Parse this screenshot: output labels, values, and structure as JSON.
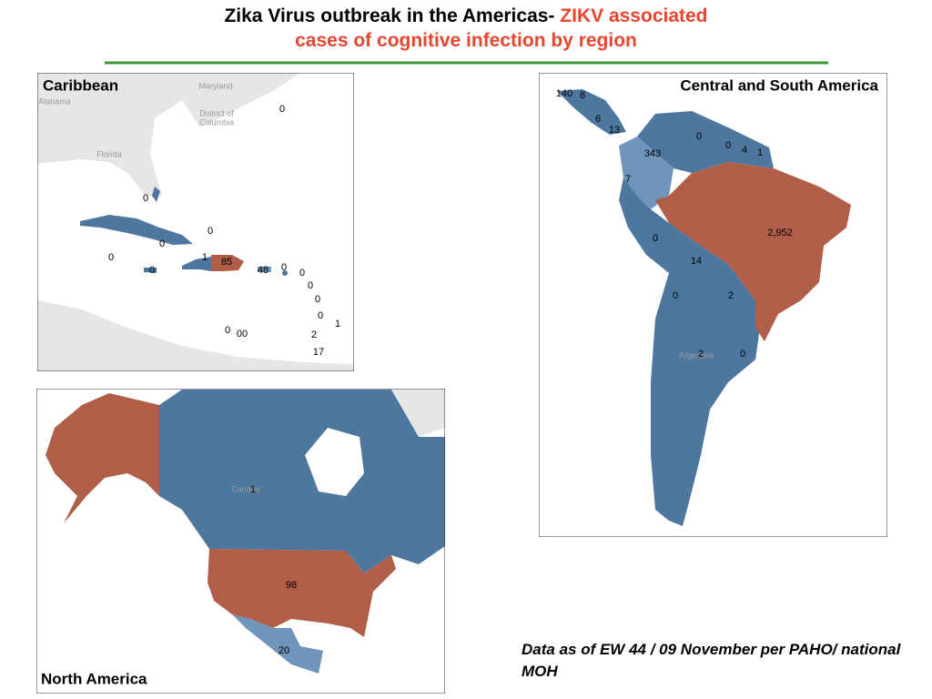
{
  "title": {
    "part1": "Zika Virus outbreak in the Americas-",
    "part2": "ZIKV associated",
    "line2": "cases of cognitive infection by region"
  },
  "panels": [
    {
      "name": "Caribbean",
      "place_labels": [
        "Maryland",
        "Alabama",
        "District of",
        "Columbia",
        "Florida"
      ],
      "case_labels": [
        "0",
        "0",
        "0",
        "0",
        "0",
        "1",
        "85",
        "48",
        "0",
        "0",
        "0",
        "0",
        "0",
        "0",
        "1",
        "0",
        "00",
        "2",
        "17"
      ]
    },
    {
      "name": "Central and South America",
      "place_labels": [
        "Argentina"
      ],
      "case_labels": [
        "140",
        "8",
        "6",
        "13",
        "343",
        "0",
        "0",
        "4",
        "1",
        "7",
        "0",
        "2,952",
        "14",
        "0",
        "2",
        "2",
        "0"
      ]
    },
    {
      "name": "North America",
      "place_labels": [
        "Canada"
      ],
      "case_labels": [
        "1",
        "98",
        "20"
      ]
    }
  ],
  "footnote": "Data as of EW 44 / 09 November per PAHO/ national MOH"
}
